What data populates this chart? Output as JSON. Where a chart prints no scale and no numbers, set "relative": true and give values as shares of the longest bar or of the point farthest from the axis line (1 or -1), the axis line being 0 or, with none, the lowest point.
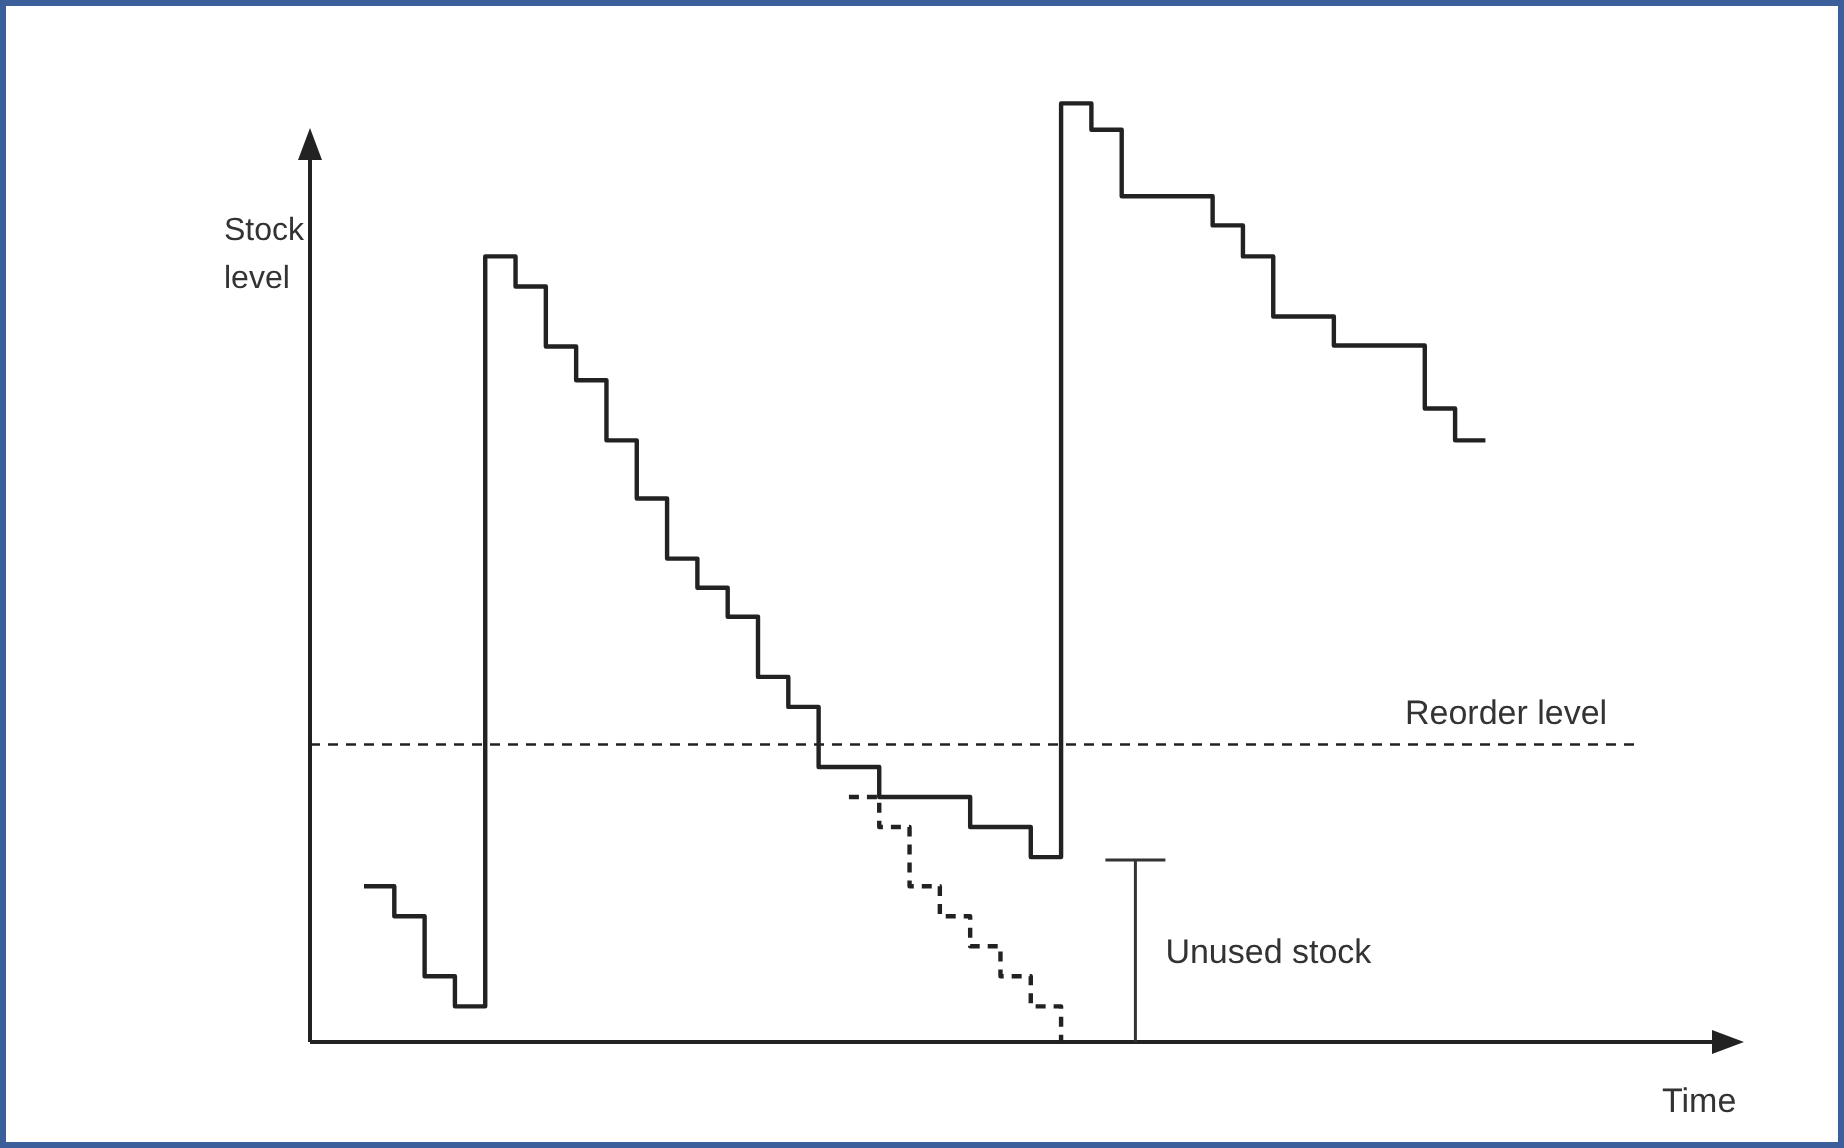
{
  "chart_data": {
    "type": "step",
    "relative": true,
    "xlabel": "Time",
    "ylabel": "Stock level",
    "marker": "none",
    "categories": [
      null,
      null,
      null,
      null,
      null,
      null,
      null,
      null,
      null,
      null,
      null,
      null,
      null,
      null,
      null,
      null,
      null,
      null,
      null,
      null,
      null,
      null,
      null,
      null,
      null,
      null,
      null,
      null,
      null,
      null,
      null,
      null,
      null,
      null,
      null,
      null,
      null,
      null
    ],
    "series": [
      {
        "color": "#222222",
        "line_style": "solid",
        "values": [
          0.166,
          0.134,
          0.07,
          0.038,
          0.837,
          0.805,
          0.741,
          0.705,
          0.641,
          0.579,
          0.515,
          0.484,
          0.453,
          0.389,
          0.357,
          0.293,
          0.293,
          0.261,
          0.261,
          0.261,
          0.229,
          0.229,
          0.197,
          1,
          0.972,
          0.901,
          0.901,
          0.901,
          0.87,
          0.837,
          0.773,
          0.773,
          0.742,
          0.742,
          0.742,
          0.675,
          0.641,
          0.641
        ]
      },
      {
        "color": "#222222",
        "line_style": "dashed",
        "values": [
          null,
          null,
          null,
          null,
          null,
          null,
          null,
          null,
          null,
          null,
          null,
          null,
          null,
          null,
          null,
          null,
          0.261,
          0.229,
          0.166,
          0.134,
          0.102,
          0.07,
          0.038,
          0,
          null,
          null,
          null,
          null,
          null,
          null,
          null,
          null,
          null,
          null,
          null,
          null,
          null,
          null
        ]
      }
    ],
    "ref_lines": [
      {
        "axis": "y",
        "value": 0.317,
        "label": "Reorder level",
        "color": "#222222",
        "line_style": "dashed"
      }
    ],
    "annotations": [
      "Unused stock"
    ]
  }
}
